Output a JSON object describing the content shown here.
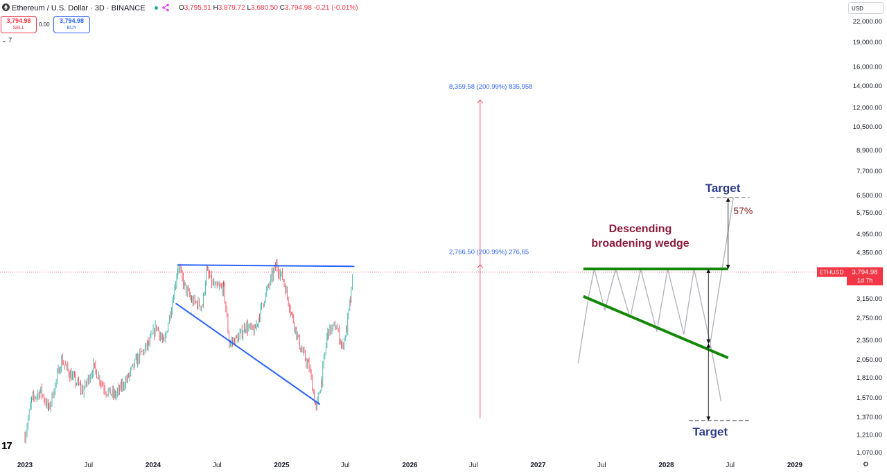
{
  "header": {
    "symbol_title": "Ethereum / U.S. Dollar · 3D · BINANCE",
    "ohlc": [
      {
        "k": "O",
        "v": "3,795.51"
      },
      {
        "k": "H",
        "v": "3,879.72"
      },
      {
        "k": "L",
        "v": "3,680.50"
      },
      {
        "k": "C",
        "v": "3,794.98"
      },
      {
        "k": "",
        "v": "-0.21 (-0.01%)"
      }
    ]
  },
  "trade": {
    "sell_price": "3,794.98",
    "sell_label": "SELL",
    "spread": "0.00",
    "buy_price": "3,794.98",
    "buy_label": "BUY",
    "collapse": "7"
  },
  "currency": "USD",
  "colors": {
    "up": "#26a69a",
    "down": "#f23645",
    "trendline": "#2962ff",
    "wedge": "#138808",
    "projection": "#f23645"
  },
  "chart_data": {
    "type": "candlestick",
    "symbol": "ETHUSD",
    "interval": "3D",
    "y_scale": "log",
    "ylim": [
      1000,
      24000
    ],
    "y_ticks": [
      "22,000.00",
      "19,000.00",
      "16,000.00",
      "14,000.00",
      "12,000.00",
      "10,500.00",
      "8,900.00",
      "7,700.00",
      "6,500.00",
      "5,750.00",
      "4,950.00",
      "4,350.00",
      "3,150.00",
      "2,750.00",
      "2,350.00",
      "2,050.00",
      "1,810.00",
      "1,570.00",
      "1,370.00",
      "1,210.00",
      "1,070.00"
    ],
    "x_ticks": [
      {
        "label": "2023",
        "bold": true
      },
      {
        "label": "Jul",
        "bold": false
      },
      {
        "label": "2024",
        "bold": true
      },
      {
        "label": "Jul",
        "bold": false
      },
      {
        "label": "2025",
        "bold": true
      },
      {
        "label": "Jul",
        "bold": false
      },
      {
        "label": "2026",
        "bold": true
      },
      {
        "label": "Jul",
        "bold": false
      },
      {
        "label": "2027",
        "bold": true
      },
      {
        "label": "Jul",
        "bold": false
      },
      {
        "label": "2028",
        "bold": true
      },
      {
        "label": "Jul",
        "bold": false
      },
      {
        "label": "2029",
        "bold": true
      }
    ],
    "price_path": [
      [
        "2023-01-01",
        1200
      ],
      [
        "2023-01-20",
        1550
      ],
      [
        "2023-02-15",
        1650
      ],
      [
        "2023-03-10",
        1450
      ],
      [
        "2023-04-15",
        2050
      ],
      [
        "2023-05-10",
        1850
      ],
      [
        "2023-06-15",
        1650
      ],
      [
        "2023-07-15",
        1950
      ],
      [
        "2023-08-20",
        1650
      ],
      [
        "2023-09-15",
        1600
      ],
      [
        "2023-10-20",
        1800
      ],
      [
        "2023-11-15",
        2050
      ],
      [
        "2023-12-20",
        2300
      ],
      [
        "2024-01-10",
        2600
      ],
      [
        "2024-02-01",
        2300
      ],
      [
        "2024-02-25",
        3100
      ],
      [
        "2024-03-12",
        3950
      ],
      [
        "2024-04-01",
        3400
      ],
      [
        "2024-04-20",
        3100
      ],
      [
        "2024-05-20",
        3000
      ],
      [
        "2024-06-01",
        3800
      ],
      [
        "2024-06-25",
        3400
      ],
      [
        "2024-07-20",
        3400
      ],
      [
        "2024-08-05",
        2300
      ],
      [
        "2024-09-01",
        2400
      ],
      [
        "2024-09-20",
        2600
      ],
      [
        "2024-10-15",
        2500
      ],
      [
        "2024-11-10",
        3100
      ],
      [
        "2024-12-05",
        3700
      ],
      [
        "2024-12-16",
        4000
      ],
      [
        "2025-01-05",
        3600
      ],
      [
        "2025-02-03",
        2700
      ],
      [
        "2025-02-25",
        2200
      ],
      [
        "2025-03-20",
        1950
      ],
      [
        "2025-04-09",
        1450
      ],
      [
        "2025-04-25",
        1800
      ],
      [
        "2025-05-12",
        2500
      ],
      [
        "2025-06-05",
        2600
      ],
      [
        "2025-06-22",
        2250
      ],
      [
        "2025-07-05",
        2550
      ],
      [
        "2025-07-15",
        3100
      ],
      [
        "2025-07-24",
        3794.98
      ]
    ],
    "last_price": {
      "symbol": "ETHUSD",
      "price": "3,794.98",
      "countdown": "1d 7h"
    },
    "trendlines": [
      {
        "name": "resistance",
        "from": [
          "2024-03-10",
          3990
        ],
        "to": [
          "2025-07-27",
          3950
        ]
      },
      {
        "name": "support",
        "from": [
          "2024-03-05",
          3050
        ],
        "to": [
          "2025-04-20",
          1500
        ]
      }
    ],
    "projection": {
      "line_start": [
        "2026-07-20",
        1360
      ],
      "line_end": [
        "2026-07-20",
        12700
      ],
      "mid_marker": [
        "2026-07-20",
        4000
      ],
      "upper_label": "8,359.58 (200.99%) 835,958",
      "mid_label": "2,766.50 (200.99%) 276,65"
    },
    "pattern": {
      "title_line1": "Descending",
      "title_line2": "broadening wedge",
      "target_label": "Target",
      "percent_label": "57%",
      "upper_line": [
        [
          "2027-05-10",
          3880
        ],
        [
          "2028-06-25",
          3880
        ]
      ],
      "lower_line": [
        [
          "2027-05-10",
          3200
        ],
        [
          "2028-06-25",
          2080
        ]
      ],
      "upper_target": [
        "2028-06-25",
        6400
      ],
      "lower_target": [
        "2028-05-20",
        1340
      ]
    }
  }
}
